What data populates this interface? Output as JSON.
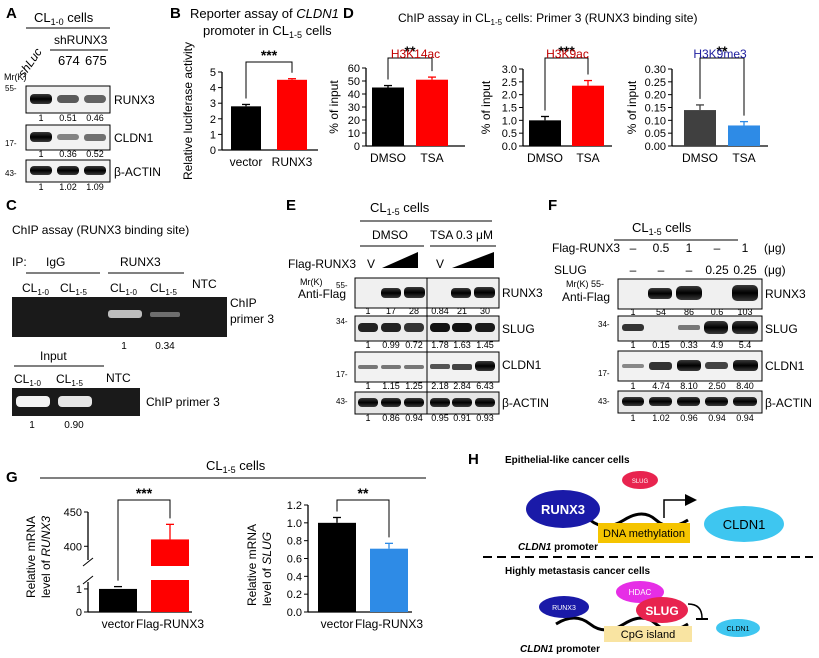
{
  "panelA": {
    "letter": "A",
    "cells_base": "CL",
    "cells_sub": "1-0",
    "cells_tail": " cells",
    "shLuc": "shLuc",
    "shRUNX3": "shRUNX3",
    "clone1": "674",
    "clone2": "675",
    "mr": "Mr(K)",
    "m55": "55-",
    "m17": "17-",
    "m43": "43-",
    "rows": [
      {
        "label": "RUNX3",
        "quant": [
          "1",
          "0.51",
          "0.46"
        ]
      },
      {
        "label": "CLDN1",
        "quant": [
          "1",
          "0.36",
          "0.52"
        ]
      },
      {
        "label": "β-ACTIN",
        "quant": [
          "1",
          "1.02",
          "1.09"
        ]
      }
    ]
  },
  "panelB": {
    "letter": "B",
    "title1_a": "Reporter assay of ",
    "title1_b": "CLDN1",
    "title2_a": "promoter in CL",
    "title2_sub": "1-5",
    "title2_b": " cells",
    "ylabel": "Relative luciferase activity",
    "sig": "***"
  },
  "panelC": {
    "letter": "C",
    "title": "ChIP assay (RUNX3 binding site)",
    "ip": "IP:",
    "igg": "IgG",
    "runx3": "RUNX3",
    "lane_base": "CL",
    "lane1_sub": "1-0",
    "lane2_sub": "1-5",
    "ntc": "NTC",
    "chip1": "ChIP",
    "chip2": "primer 3",
    "q1": "1",
    "q2": "0.34",
    "input": "Input",
    "inq1": "1",
    "inq2": "0.90",
    "input_primer": "ChIP primer 3"
  },
  "panelD": {
    "letter": "D",
    "title_a": "ChIP assay in CL",
    "title_sub": "1-5",
    "title_b": " cells: Primer 3 (RUNX3 binding site)",
    "ylabel": "% of input"
  },
  "panelE": {
    "letter": "E",
    "cells_base": "CL",
    "cells_sub": "1-5",
    "cells_tail": " cells",
    "dmso": "DMSO",
    "tsa": "TSA 0.3 μM",
    "flag": "Flag-RUNX3",
    "v": "V",
    "mr": "Mr(K)",
    "antiflag": "Anti-Flag",
    "m55": "55-",
    "m34": "34-",
    "m17": "17-",
    "m43": "43-",
    "rows": [
      {
        "label": "RUNX3",
        "quant": [
          "1",
          "17",
          "28",
          "0.84",
          "21",
          "30"
        ]
      },
      {
        "label": "SLUG",
        "quant": [
          "1",
          "0.99",
          "0.72",
          "1.78",
          "1.63",
          "1.45"
        ]
      },
      {
        "label": "CLDN1",
        "quant": [
          "1",
          "1.15",
          "1.25",
          "2.18",
          "2.84",
          "6.43"
        ]
      },
      {
        "label": "β-ACTIN",
        "quant": [
          "1",
          "0.86",
          "0.94",
          "0.95",
          "0.91",
          "0.93"
        ]
      }
    ]
  },
  "panelF": {
    "letter": "F",
    "cells_base": "CL",
    "cells_sub": "1-5",
    "cells_tail": " cells",
    "flag": "Flag-RUNX3",
    "slug": "SLUG",
    "unit": "(μg)",
    "flag_vals": [
      "–",
      "0.5",
      "1",
      "–",
      "1"
    ],
    "slug_vals": [
      "–",
      "–",
      "–",
      "0.25",
      "0.25"
    ],
    "mr": "Mr(K) 55-",
    "antiflag": "Anti-Flag",
    "m34": "34-",
    "m17": "17-",
    "m43": "43-",
    "rows": [
      {
        "label": "RUNX3",
        "quant": [
          "1",
          "54",
          "86",
          "0.6",
          "103"
        ]
      },
      {
        "label": "SLUG",
        "quant": [
          "1",
          "0.15",
          "0.33",
          "4.9",
          "5.4"
        ]
      },
      {
        "label": "CLDN1",
        "quant": [
          "1",
          "4.74",
          "8.10",
          "2.50",
          "8.40"
        ]
      },
      {
        "label": "β-ACTIN",
        "quant": [
          "1",
          "1.02",
          "0.96",
          "0.94",
          "0.94"
        ]
      }
    ]
  },
  "panelG": {
    "letter": "G",
    "cells_base": "CL",
    "cells_sub": "1-5",
    "cells_tail": " cells",
    "left_ylabel1": "Relative mRNA",
    "left_ylabel2_a": "level of ",
    "left_ylabel2_b": "RUNX3",
    "right_ylabel1": "Relative mRNA",
    "right_ylabel2_a": "level of ",
    "right_ylabel2_b": "SLUG"
  },
  "panelH": {
    "letter": "H",
    "top_title": "Epithelial-like cancer cells",
    "slug_small": "SLUG",
    "runx3": "RUNX3",
    "dna_meth": "DNA methylation",
    "cldn1": "CLDN1",
    "promoter_a": "CLDN1",
    "promoter_b": " promoter",
    "bottom_title": "Highly metastasis cancer cells",
    "hdac": "HDAC",
    "slug": "SLUG",
    "runx3_small": "RUNX3",
    "cpg": "CpG island",
    "cldn1_small": "CLDN1",
    "promoter2_a": "CLDN1",
    "promoter2_b": " promoter"
  },
  "chart_data": [
    {
      "id": "B",
      "type": "bar",
      "categories": [
        "vector",
        "RUNX3"
      ],
      "values": [
        2.8,
        4.5
      ],
      "errors": [
        0.12,
        0.07
      ],
      "colors": [
        "#000000",
        "#ff0000"
      ],
      "ylim": [
        0,
        5
      ],
      "yticks": [
        "0",
        "1",
        "2",
        "3",
        "4",
        "5"
      ],
      "ylabel": "Relative luciferase activity",
      "sig": "***"
    },
    {
      "id": "D1",
      "type": "bar",
      "title": "H3K14ac",
      "title_color": "#c00000",
      "categories": [
        "DMSO",
        "TSA"
      ],
      "values": [
        45,
        51
      ],
      "errors": [
        1.5,
        2.0
      ],
      "colors": [
        "#000000",
        "#ff0000"
      ],
      "ylim": [
        0,
        60
      ],
      "yticks": [
        "0",
        "10",
        "20",
        "30",
        "40",
        "50",
        "60"
      ],
      "ylabel": "% of input",
      "sig": "**"
    },
    {
      "id": "D2",
      "type": "bar",
      "title": "H3K9ac",
      "title_color": "#c00000",
      "categories": [
        "DMSO",
        "TSA"
      ],
      "values": [
        1.0,
        2.35
      ],
      "errors": [
        0.15,
        0.2
      ],
      "colors": [
        "#000000",
        "#ff0000"
      ],
      "ylim": [
        0,
        3.0
      ],
      "yticks": [
        "0.0",
        "0.5",
        "1.0",
        "1.5",
        "2.0",
        "2.5",
        "3.0"
      ],
      "ylabel": "% of input",
      "sig": "***"
    },
    {
      "id": "D3",
      "type": "bar",
      "title": "H3K9me3",
      "title_color": "#1f1f9f",
      "categories": [
        "DMSO",
        "TSA"
      ],
      "values": [
        0.14,
        0.08
      ],
      "errors": [
        0.02,
        0.015
      ],
      "colors": [
        "#404040",
        "#2e8be6"
      ],
      "ylim": [
        0,
        0.3
      ],
      "yticks": [
        "0.00",
        "0.05",
        "0.10",
        "0.15",
        "0.20",
        "0.25",
        "0.30"
      ],
      "ylabel": "% of input",
      "sig": "**"
    },
    {
      "id": "G1",
      "type": "bar",
      "categories": [
        "vector",
        "Flag-RUNX3"
      ],
      "values": [
        1.0,
        410
      ],
      "errors": [
        0.05,
        22
      ],
      "colors": [
        "#000000",
        "#ff0000"
      ],
      "axis_break": true,
      "yticks_lower": [
        "0",
        "1"
      ],
      "yticks_upper": [
        "400",
        "450"
      ],
      "ylabel": "Relative mRNA level of RUNX3",
      "sig": "***"
    },
    {
      "id": "G2",
      "type": "bar",
      "categories": [
        "vector",
        "Flag-RUNX3"
      ],
      "values": [
        1.0,
        0.71
      ],
      "errors": [
        0.06,
        0.06
      ],
      "colors": [
        "#000000",
        "#2e8be6"
      ],
      "ylim": [
        0,
        1.2
      ],
      "yticks": [
        "0.0",
        "0.2",
        "0.4",
        "0.6",
        "0.8",
        "1.0",
        "1.2"
      ],
      "ylabel": "Relative mRNA level of SLUG",
      "sig": "**"
    }
  ]
}
